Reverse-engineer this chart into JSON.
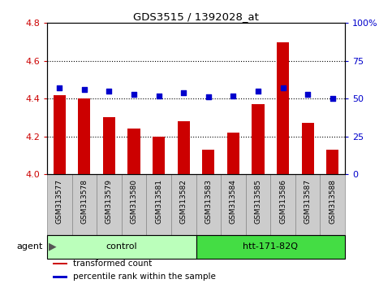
{
  "title": "GDS3515 / 1392028_at",
  "samples": [
    "GSM313577",
    "GSM313578",
    "GSM313579",
    "GSM313580",
    "GSM313581",
    "GSM313582",
    "GSM313583",
    "GSM313584",
    "GSM313585",
    "GSM313586",
    "GSM313587",
    "GSM313588"
  ],
  "bar_values": [
    4.42,
    4.4,
    4.3,
    4.24,
    4.2,
    4.28,
    4.13,
    4.22,
    4.37,
    4.7,
    4.27,
    4.13
  ],
  "dot_values": [
    57,
    56,
    55,
    53,
    52,
    54,
    51,
    52,
    55,
    57,
    53,
    50
  ],
  "bar_color": "#CC0000",
  "dot_color": "#0000CC",
  "ylim_left": [
    4.0,
    4.8
  ],
  "ylim_right": [
    0,
    100
  ],
  "yticks_left": [
    4.0,
    4.2,
    4.4,
    4.6,
    4.8
  ],
  "yticks_right": [
    0,
    25,
    50,
    75,
    100
  ],
  "ytick_labels_right": [
    "0",
    "25",
    "50",
    "75",
    "100%"
  ],
  "grid_values": [
    4.2,
    4.4,
    4.6
  ],
  "groups": [
    {
      "label": "control",
      "start": 0,
      "end": 5,
      "color": "#BBFFBB"
    },
    {
      "label": "htt-171-82Q",
      "start": 6,
      "end": 11,
      "color": "#44DD44"
    }
  ],
  "agent_label": "agent",
  "legend": [
    {
      "label": "transformed count",
      "color": "#CC0000"
    },
    {
      "label": "percentile rank within the sample",
      "color": "#0000CC"
    }
  ],
  "bar_width": 0.5,
  "tick_label_color_left": "#CC0000",
  "tick_label_color_right": "#0000CC",
  "sample_box_color": "#CCCCCC",
  "sample_box_edge": "#888888"
}
